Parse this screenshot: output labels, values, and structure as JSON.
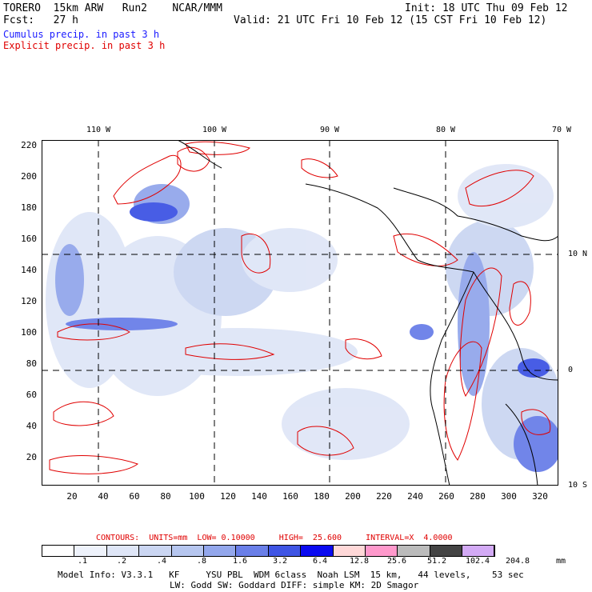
{
  "header": {
    "line1_left": "TORERO  15km ARW   Run2    NCAR/MMM",
    "line1_right": "Init: 18 UTC Thu 09 Feb 12",
    "line2_left": "Fcst:   27 h",
    "line2_right": "Valid: 21 UTC Fri 10 Feb 12 (15 CST Fri 10 Feb 12)",
    "cumulus_label": "Cumulus precip. in past 3 h",
    "explicit_label": "Explicit precip. in past 3 h"
  },
  "colors": {
    "cumulus_text": "#1a1aff",
    "explicit_text": "#e00000",
    "contour": "#e00000",
    "grid": "#000000"
  },
  "lon_labels": [
    "110 W",
    "100 W",
    "90 W",
    "80 W",
    "70 W"
  ],
  "lat_labels": [
    "10 N",
    "0",
    "10 S"
  ],
  "y_ticks": [
    "220",
    "200",
    "180",
    "160",
    "140",
    "120",
    "100",
    "80",
    "60",
    "40",
    "20"
  ],
  "x_ticks": [
    "20",
    "40",
    "60",
    "80",
    "100",
    "120",
    "140",
    "160",
    "180",
    "200",
    "220",
    "240",
    "260",
    "280",
    "300",
    "320"
  ],
  "contour_info": "CONTOURS:  UNITS=mm  LOW= 0.10000     HIGH=  25.600     INTERVAL=X  4.0000",
  "colorbar": {
    "colors": [
      "#ffffff",
      "#eef2fb",
      "#dfe6f7",
      "#cbd6f2",
      "#b6c6ef",
      "#93a7ec",
      "#6a7fe8",
      "#3f55e4",
      "#0a0af0",
      "#ffd8d8",
      "#ff99cc",
      "#bbbbbb",
      "#444444",
      "#d3aaf5"
    ],
    "labels": [
      ".1",
      ".2",
      ".4",
      ".8",
      "1.6",
      "3.2",
      "6.4",
      "12.8",
      "25.6",
      "51.2",
      "102.4",
      "204.8"
    ],
    "units": "mm"
  },
  "footer": {
    "line1": "Model Info: V3.3.1   KF     YSU PBL  WDM 6class  Noah LSM  15 km,   44 levels,    53 sec",
    "line2": "LW: Godd SW: Goddard DIFF: simple KM: 2D Smagor"
  }
}
